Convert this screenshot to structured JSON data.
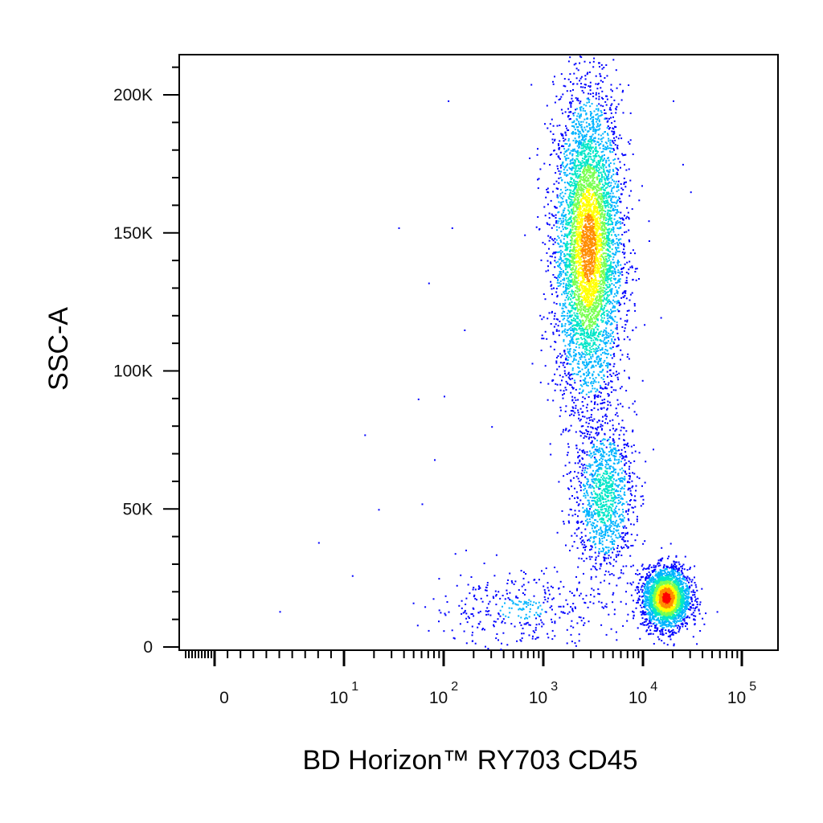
{
  "chart_data": {
    "type": "scatter",
    "subtype": "flow-cytometry pseudocolor density dot plot",
    "title": "",
    "xlabel": "BD Horizon™ RY703 CD45",
    "ylabel": "SSC-A",
    "x_scale": "biexponential (linear near 0, log above)",
    "xlim": [
      -5,
      200000
    ],
    "ylim": [
      -2000,
      212000
    ],
    "x_ticks": [
      {
        "value": 0,
        "base": "0",
        "exp": ""
      },
      {
        "value": 10,
        "base": "10",
        "exp": "1"
      },
      {
        "value": 100,
        "base": "10",
        "exp": "2"
      },
      {
        "value": 1000,
        "base": "10",
        "exp": "3"
      },
      {
        "value": 10000,
        "base": "10",
        "exp": "4"
      },
      {
        "value": 100000,
        "base": "10",
        "exp": "5"
      }
    ],
    "y_ticks": [
      {
        "value": 0,
        "label": "0"
      },
      {
        "value": 50000,
        "label": "50K"
      },
      {
        "value": 100000,
        "label": "100K"
      },
      {
        "value": 150000,
        "label": "150K"
      },
      {
        "value": 200000,
        "label": "200K"
      }
    ],
    "grid": false,
    "legend": "none",
    "colormap": [
      "#0000ff",
      "#00b4ff",
      "#00e6c8",
      "#78ff50",
      "#ffff00",
      "#ff8c00",
      "#ff0000"
    ],
    "populations": [
      {
        "x_center": 2800,
        "x_log_spread": 0.17,
        "y_center": 145000,
        "y_spread": 28000,
        "count": 5200,
        "peak_density": 0.85
      },
      {
        "x_center": 4000,
        "x_log_spread": 0.15,
        "y_center": 55000,
        "y_spread": 14000,
        "count": 1200,
        "peak_density": 0.35
      },
      {
        "x_center": 17000,
        "x_log_spread": 0.12,
        "y_center": 18000,
        "y_spread": 5500,
        "count": 2600,
        "peak_density": 1.0
      },
      {
        "x_center": 600,
        "x_log_spread": 0.45,
        "y_center": 14000,
        "y_spread": 7000,
        "count": 380,
        "peak_density": 0.1
      }
    ],
    "sparse_points": [
      {
        "x": 110,
        "y": 198000
      },
      {
        "x": 35,
        "y": 152000
      },
      {
        "x": 120,
        "y": 152000
      },
      {
        "x": 70,
        "y": 132000
      },
      {
        "x": 160,
        "y": 115000
      },
      {
        "x": 55,
        "y": 90000
      },
      {
        "x": 100,
        "y": 91000
      },
      {
        "x": 16,
        "y": 77000
      },
      {
        "x": 80,
        "y": 68000
      },
      {
        "x": 22,
        "y": 50000
      },
      {
        "x": 60,
        "y": 52000
      },
      {
        "x": 8,
        "y": 38000
      },
      {
        "x": 5,
        "y": 13000
      },
      {
        "x": 12,
        "y": 26000
      },
      {
        "x": 300,
        "y": 80000
      },
      {
        "x": 20000,
        "y": 198000
      },
      {
        "x": 25000,
        "y": 175000
      },
      {
        "x": 30000,
        "y": 165000
      }
    ]
  }
}
